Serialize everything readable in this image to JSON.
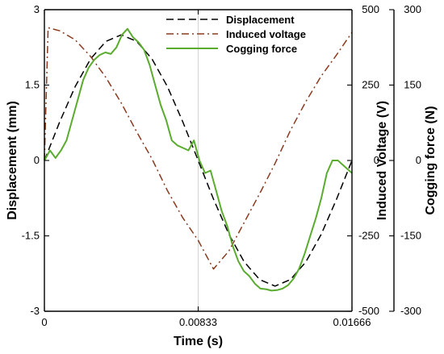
{
  "chart_data": {
    "type": "line",
    "xlabel": "Time (s)",
    "x_ticks": [
      "0",
      "0.00833",
      "0.01666"
    ],
    "xlim": [
      0,
      0.01666
    ],
    "y_axes": [
      {
        "label": "Displacement (mm)",
        "ticks": [
          "3",
          "1.5",
          "0",
          "-1.5",
          "-3"
        ],
        "ylim": [
          -3,
          3
        ]
      },
      {
        "label": "Induced Voltage (V)",
        "ticks": [
          "500",
          "250",
          "0",
          "-250",
          "-500"
        ],
        "ylim": [
          -500,
          500
        ]
      },
      {
        "label": "Cogging force (N)",
        "ticks": [
          "300",
          "150",
          "0",
          "-150",
          "-300"
        ],
        "ylim": [
          -300,
          300
        ]
      }
    ],
    "legend_position": "top-right",
    "series": [
      {
        "name": "Displacement",
        "axis": 0,
        "style": "dashed",
        "color": "#000000",
        "x": [
          0,
          0.000833,
          0.001666,
          0.0025,
          0.003332,
          0.004165,
          0.004998,
          0.005831,
          0.006664,
          0.007497,
          0.00833,
          0.009163,
          0.009996,
          0.010829,
          0.011662,
          0.012495,
          0.013328,
          0.014161,
          0.014994,
          0.015827,
          0.01666
        ],
        "y": [
          0,
          0.77,
          1.47,
          2.02,
          2.37,
          2.5,
          2.37,
          2.02,
          1.47,
          0.77,
          0,
          -0.77,
          -1.47,
          -2.02,
          -2.37,
          -2.5,
          -2.37,
          -2.02,
          -1.47,
          -0.77,
          0
        ]
      },
      {
        "name": "Induced voltage",
        "axis": 1,
        "style": "dashdot",
        "color": "#8b3a1e",
        "x": [
          0,
          0.0002,
          0.000833,
          0.001666,
          0.0025,
          0.003332,
          0.004165,
          0.004998,
          0.005831,
          0.006664,
          0.007497,
          0.00833,
          0.009163,
          0.009996,
          0.010829,
          0.011662,
          0.012495,
          0.013328,
          0.014161,
          0.014994,
          0.015827,
          0.01666
        ],
        "y": [
          0,
          440,
          430,
          400,
          345,
          275,
          190,
          95,
          5,
          -100,
          -190,
          -265,
          -360,
          -300,
          -205,
          -110,
          -10,
          100,
          195,
          280,
          350,
          425
        ]
      },
      {
        "name": "Cogging force",
        "axis": 2,
        "style": "solid",
        "color": "#5aac2e",
        "x": [
          0,
          0.0003,
          0.0006,
          0.0009,
          0.0012,
          0.0015,
          0.0018,
          0.0021,
          0.0024,
          0.0027,
          0.003,
          0.0033,
          0.0036,
          0.0039,
          0.0042,
          0.0045,
          0.0048,
          0.0051,
          0.0054,
          0.0057,
          0.006,
          0.0063,
          0.0066,
          0.0069,
          0.0072,
          0.0075,
          0.0078,
          0.0081,
          0.0084,
          0.0087,
          0.009,
          0.0093,
          0.0096,
          0.0099,
          0.0102,
          0.0105,
          0.0108,
          0.0111,
          0.0114,
          0.0117,
          0.012,
          0.0123,
          0.0126,
          0.0129,
          0.0132,
          0.0135,
          0.0138,
          0.0141,
          0.0144,
          0.0147,
          0.015,
          0.0153,
          0.0156,
          0.0159,
          0.0162,
          0.01666
        ],
        "y": [
          0,
          20,
          5,
          20,
          40,
          80,
          120,
          160,
          185,
          200,
          210,
          215,
          212,
          225,
          250,
          262,
          245,
          235,
          220,
          190,
          150,
          110,
          80,
          40,
          30,
          25,
          20,
          40,
          0,
          -25,
          -20,
          -60,
          -100,
          -130,
          -170,
          -200,
          -220,
          -230,
          -245,
          -255,
          -256,
          -259,
          -258,
          -255,
          -248,
          -235,
          -215,
          -185,
          -150,
          -115,
          -75,
          -25,
          0,
          0,
          -10,
          -25
        ]
      }
    ]
  }
}
